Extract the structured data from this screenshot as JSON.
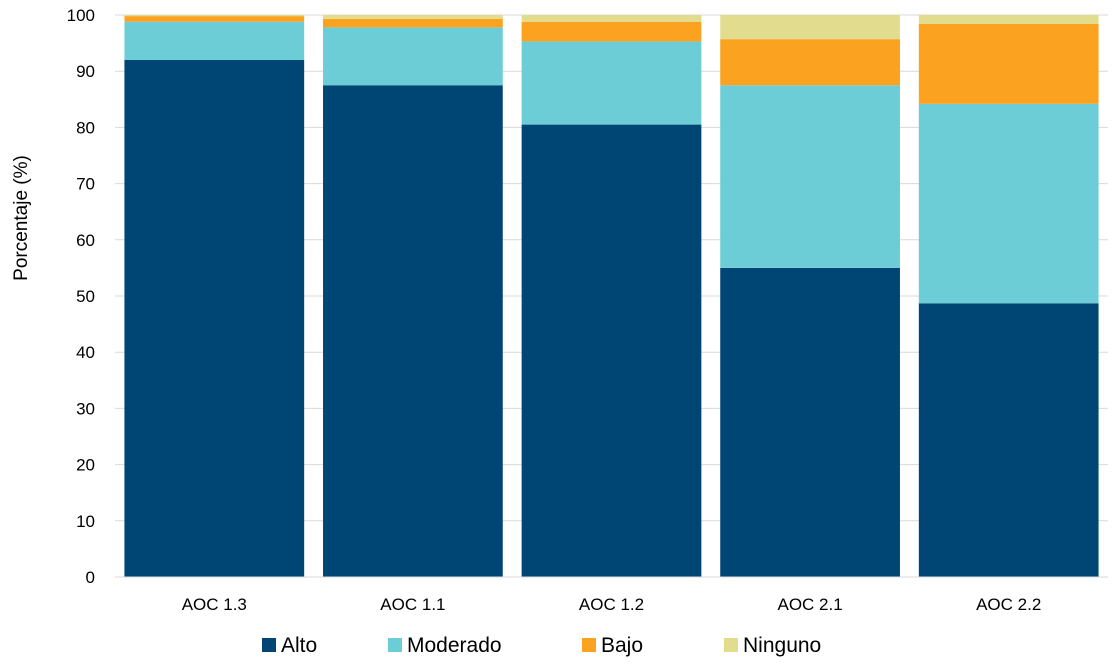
{
  "chart_data": {
    "type": "bar",
    "stacked": true,
    "categories": [
      "AOC 1.3",
      "AOC 1.1",
      "AOC 1.2",
      "AOC 2.1",
      "AOC 2.2"
    ],
    "series": [
      {
        "name": "Alto",
        "color": "#004675",
        "values": [
          92.0,
          87.5,
          80.5,
          55.0,
          48.7
        ]
      },
      {
        "name": "Moderado",
        "color": "#6ccdd6",
        "values": [
          6.8,
          10.3,
          14.8,
          32.5,
          35.5
        ]
      },
      {
        "name": "Bajo",
        "color": "#fba221",
        "values": [
          1.0,
          1.5,
          3.5,
          8.2,
          14.2
        ]
      },
      {
        "name": "Ninguno",
        "color": "#e2dd8e",
        "values": [
          0.2,
          0.7,
          1.2,
          4.3,
          1.6
        ]
      }
    ],
    "ylabel": "Porcentaje (%)",
    "xlabel": "",
    "ylim": [
      0,
      100
    ],
    "yticks": [
      0,
      10,
      20,
      30,
      40,
      50,
      60,
      70,
      80,
      90,
      100
    ],
    "grid": true,
    "legend_position": "bottom"
  }
}
